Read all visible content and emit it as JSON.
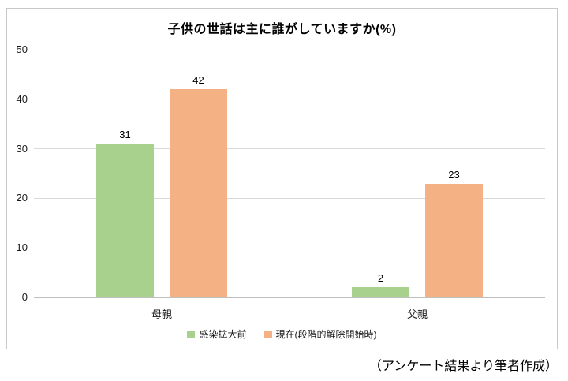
{
  "chart_data": {
    "type": "bar",
    "title": "子供の世話は主に誰がしていますか(%)",
    "categories": [
      "母親",
      "父親"
    ],
    "series": [
      {
        "name": "感染拡大前",
        "color": "#A9D18E",
        "values": [
          31,
          2
        ]
      },
      {
        "name": "現在(段階的解除開始時)",
        "color": "#F4B183",
        "values": [
          42,
          23
        ]
      }
    ],
    "ylim": [
      0,
      50
    ],
    "yticks": [
      0,
      10,
      20,
      30,
      40,
      50
    ],
    "grid": true,
    "legend_position": "bottom",
    "data_labels": true,
    "colors": {
      "gridline": "#D9D9D9",
      "axis_line": "#BFBFBF",
      "frame_border": "#C9C9C9",
      "text": "#000000"
    }
  },
  "footer": {
    "caption": "（アンケート結果より筆者作成）"
  }
}
